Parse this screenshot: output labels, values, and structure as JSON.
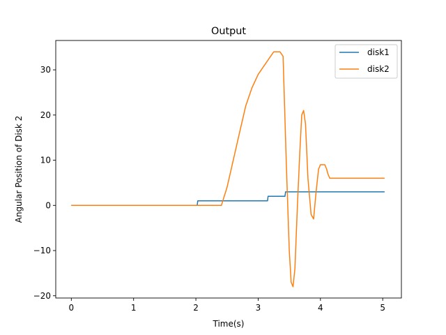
{
  "chart_data": {
    "type": "line",
    "title": "Output",
    "xlabel": "Time(s)",
    "ylabel": "Angular Position of Disk 2",
    "xlim": [
      -0.25,
      5.3
    ],
    "ylim": [
      -20.5,
      36.5
    ],
    "xticks": [
      0,
      1,
      2,
      3,
      4,
      5
    ],
    "xtick_labels": [
      "0",
      "1",
      "2",
      "3",
      "4",
      "5"
    ],
    "yticks": [
      -20,
      -10,
      0,
      10,
      20,
      30
    ],
    "ytick_labels": [
      "−20",
      "−10",
      "0",
      "10",
      "20",
      "30"
    ],
    "grid": false,
    "legend": "top-right",
    "series": [
      {
        "name": "disk1",
        "color": "#1f77b4",
        "x": [
          0,
          2.02,
          2.03,
          3.15,
          3.16,
          3.43,
          3.44,
          5.03
        ],
        "y": [
          0,
          0,
          1,
          1,
          2,
          2,
          3,
          3
        ]
      },
      {
        "name": "disk2",
        "color": "#ff7f0e",
        "x": [
          0,
          2.41,
          2.5,
          2.6,
          2.7,
          2.8,
          2.9,
          3.0,
          3.1,
          3.2,
          3.25,
          3.3,
          3.35,
          3.4,
          3.45,
          3.5,
          3.53,
          3.56,
          3.59,
          3.63,
          3.67,
          3.7,
          3.73,
          3.76,
          3.8,
          3.85,
          3.89,
          3.93,
          3.97,
          4.0,
          4.03,
          4.07,
          4.1,
          4.12,
          4.15,
          5.03
        ],
        "y": [
          0,
          0,
          4,
          10,
          16,
          22,
          26,
          29,
          31,
          33,
          34,
          34,
          34,
          33,
          10,
          -10,
          -17,
          -18,
          -14,
          0,
          12,
          20,
          21,
          18,
          6,
          -2,
          -3,
          3,
          8,
          9,
          9,
          9,
          8,
          7,
          6,
          6
        ]
      }
    ]
  }
}
